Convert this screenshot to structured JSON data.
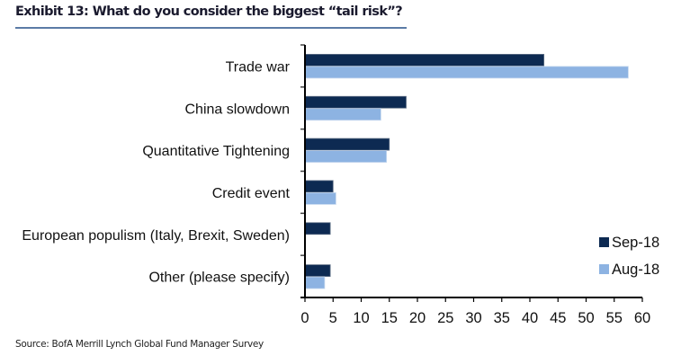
{
  "chart_data": {
    "type": "bar",
    "orientation": "horizontal",
    "title": "Exhibit 13: What do you consider the biggest “tail risk”?",
    "categories": [
      "Trade war",
      "China slowdown",
      "Quantitative Tightening",
      "Credit event",
      "European populism (Italy, Brexit, Sweden)",
      "Other (please specify)"
    ],
    "series": [
      {
        "name": "Sep-18",
        "color": "#0d2a52",
        "values": [
          42.5,
          18,
          15,
          5,
          4.5,
          4.5
        ]
      },
      {
        "name": "Aug-18",
        "color": "#8db3e2",
        "values": [
          57.5,
          13.5,
          14.5,
          5.5,
          null,
          3.5
        ]
      }
    ],
    "xlabel": "",
    "ylabel": "",
    "xlim": [
      0,
      60
    ],
    "xticks": [
      0,
      5,
      10,
      15,
      20,
      25,
      30,
      35,
      40,
      45,
      50,
      55,
      60
    ],
    "grid": false,
    "legend_position": "bottom-right",
    "source": "Source:  BofA Merrill Lynch Global Fund Manager Survey"
  }
}
